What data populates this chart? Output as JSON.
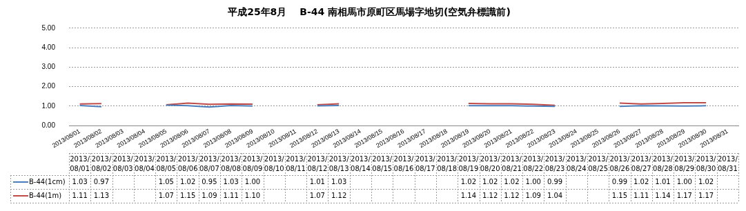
{
  "chart_data": {
    "type": "line",
    "title": "平成25年8月　 B-44 南相馬市原町区馬場字地切(空気弁標識前)",
    "categories": [
      "2013/08/01",
      "2013/08/02",
      "2013/08/03",
      "2013/08/04",
      "2013/08/05",
      "2013/08/06",
      "2013/08/07",
      "2013/08/08",
      "2013/08/09",
      "2013/08/10",
      "2013/08/11",
      "2013/08/12",
      "2013/08/13",
      "2013/08/14",
      "2013/08/15",
      "2013/08/16",
      "2013/08/17",
      "2013/08/18",
      "2013/08/19",
      "2013/08/20",
      "2013/08/21",
      "2013/08/22",
      "2013/08/23",
      "2013/08/24",
      "2013/08/25",
      "2013/08/26",
      "2013/08/27",
      "2013/08/28",
      "2013/08/29",
      "2013/08/30",
      "2013/08/31"
    ],
    "series": [
      {
        "name": "B-44(1cm)",
        "color": "#4a7ebb",
        "values": [
          1.03,
          0.97,
          null,
          null,
          1.05,
          1.02,
          0.95,
          1.03,
          1.0,
          null,
          null,
          1.01,
          1.03,
          null,
          null,
          null,
          null,
          null,
          1.02,
          1.02,
          1.02,
          1.0,
          0.99,
          null,
          null,
          0.99,
          1.02,
          1.01,
          1.0,
          1.02,
          null
        ],
        "value_labels": [
          "1.03",
          "0.97",
          null,
          null,
          "1.05",
          "1.02",
          "0.95",
          "1.03",
          "1.00",
          null,
          null,
          "1.01",
          "1.03",
          null,
          null,
          null,
          null,
          null,
          "1.02",
          "1.02",
          "1.02",
          "1.00",
          "0.99",
          null,
          null,
          "0.99",
          "1.02",
          "1.01",
          "1.00",
          "1.02",
          null
        ]
      },
      {
        "name": "B-44(1m)",
        "color": "#be4b48",
        "values": [
          1.11,
          1.13,
          null,
          null,
          1.07,
          1.15,
          1.09,
          1.11,
          1.1,
          null,
          null,
          1.07,
          1.12,
          null,
          null,
          null,
          null,
          null,
          1.14,
          1.12,
          1.12,
          1.09,
          1.04,
          null,
          null,
          1.15,
          1.11,
          1.14,
          1.17,
          1.17,
          null
        ],
        "value_labels": [
          "1.11",
          "1.13",
          null,
          null,
          "1.07",
          "1.15",
          "1.09",
          "1.11",
          "1.10",
          null,
          null,
          "1.07",
          "1.12",
          null,
          null,
          null,
          null,
          null,
          "1.14",
          "1.12",
          "1.12",
          "1.09",
          "1.04",
          null,
          null,
          "1.15",
          "1.11",
          "1.14",
          "1.17",
          "1.17",
          null
        ]
      }
    ],
    "ylim": [
      0,
      5
    ],
    "yticks": [
      {
        "value": 0,
        "label": "0.00"
      },
      {
        "value": 1,
        "label": "1.00"
      },
      {
        "value": 2,
        "label": "2.00"
      },
      {
        "value": 3,
        "label": "3.00"
      },
      {
        "value": 4,
        "label": "4.00"
      },
      {
        "value": 5,
        "label": "5.00"
      }
    ],
    "grid": "y",
    "legend": "bottom",
    "marker": "none",
    "line_style": "solid"
  }
}
